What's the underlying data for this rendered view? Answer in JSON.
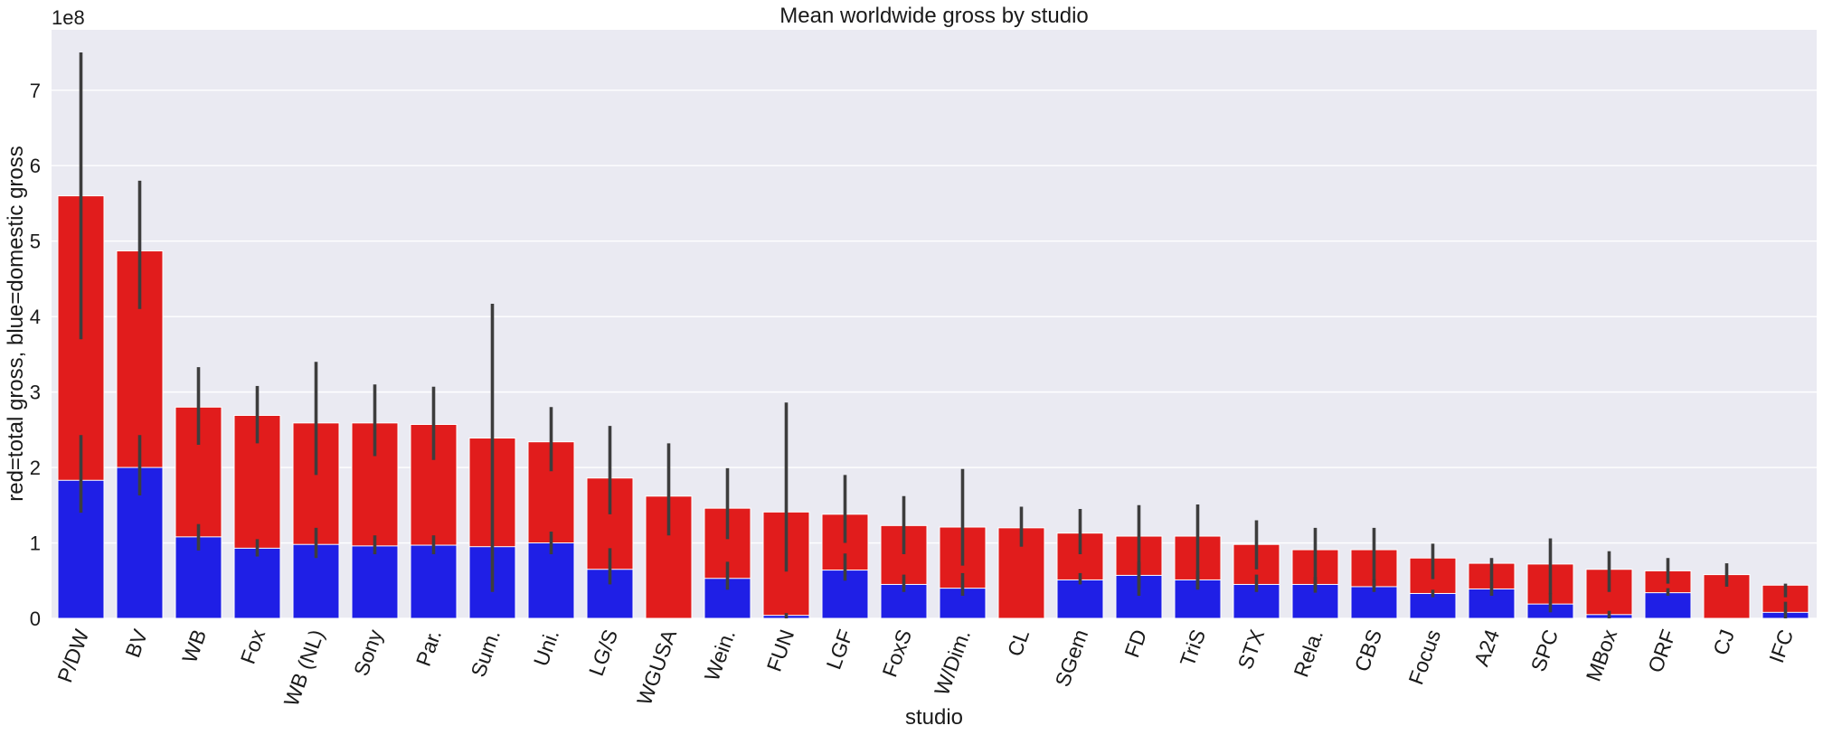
{
  "chart_data": {
    "type": "bar",
    "title": "Mean worldwide gross by studio",
    "xlabel": "studio",
    "ylabel": "red=total gross, blue=domestic gross",
    "y_offset_text": "1e8",
    "ylim": [
      0,
      7.8
    ],
    "yticks": [
      0,
      1,
      2,
      3,
      4,
      5,
      6,
      7
    ],
    "grid": true,
    "categories": [
      "P/DW",
      "BV",
      "WB",
      "Fox",
      "WB (NL)",
      "Sony",
      "Par.",
      "Sum.",
      "Uni.",
      "LG/S",
      "WGUSA",
      "Wein.",
      "FUN",
      "LGF",
      "FoxS",
      "W/Dim.",
      "CL",
      "SGem",
      "FD",
      "TriS",
      "STX",
      "Rela.",
      "CBS",
      "Focus",
      "A24",
      "SPC",
      "MBox",
      "ORF",
      "CJ",
      "IFC"
    ],
    "series": [
      {
        "name": "total gross",
        "color": "#e11c1c",
        "values": [
          5.6,
          4.87,
          2.8,
          2.69,
          2.59,
          2.59,
          2.57,
          2.39,
          2.34,
          1.86,
          1.62,
          1.46,
          1.41,
          1.38,
          1.23,
          1.21,
          1.2,
          1.13,
          1.09,
          1.09,
          0.98,
          0.91,
          0.91,
          0.8,
          0.73,
          0.72,
          0.65,
          0.63,
          0.58,
          0.44
        ],
        "error_low": [
          3.7,
          4.1,
          2.3,
          2.32,
          1.9,
          2.15,
          2.1,
          0.35,
          1.95,
          1.38,
          1.1,
          1.05,
          0.62,
          1.0,
          0.85,
          0.7,
          0.95,
          0.85,
          0.3,
          0.38,
          0.65,
          0.38,
          0.42,
          0.52,
          0.48,
          0.32,
          0.35,
          0.46,
          0.42,
          0.28
        ],
        "error_high": [
          7.5,
          5.8,
          3.33,
          3.08,
          3.4,
          3.1,
          3.07,
          4.17,
          2.8,
          2.55,
          2.32,
          1.99,
          2.86,
          1.9,
          1.62,
          1.98,
          1.48,
          1.45,
          1.5,
          1.51,
          1.3,
          1.2,
          1.2,
          0.99,
          0.8,
          1.06,
          0.89,
          0.8,
          0.73,
          0.46
        ]
      },
      {
        "name": "domestic gross",
        "color": "#1f1fe6",
        "values": [
          1.83,
          2.0,
          1.08,
          0.93,
          0.98,
          0.96,
          0.97,
          0.95,
          1.0,
          0.65,
          0.0,
          0.53,
          0.04,
          0.64,
          0.45,
          0.4,
          0.0,
          0.51,
          0.57,
          0.51,
          0.45,
          0.45,
          0.42,
          0.33,
          0.39,
          0.19,
          0.05,
          0.34,
          0.0,
          0.08
        ],
        "error_low": [
          1.4,
          1.63,
          0.9,
          0.82,
          0.8,
          0.85,
          0.85,
          null,
          0.85,
          0.45,
          null,
          0.38,
          0.0,
          0.5,
          0.35,
          0.3,
          null,
          0.45,
          0.4,
          0.4,
          0.35,
          0.34,
          0.35,
          0.28,
          0.3,
          0.08,
          0.0,
          0.3,
          null,
          0.0
        ],
        "error_high": [
          2.43,
          2.43,
          1.25,
          1.05,
          1.2,
          1.1,
          1.1,
          null,
          1.15,
          0.93,
          null,
          0.75,
          0.07,
          0.86,
          0.58,
          0.6,
          null,
          0.6,
          0.75,
          0.63,
          0.58,
          0.55,
          0.52,
          0.38,
          0.48,
          0.33,
          0.1,
          0.4,
          null,
          0.22
        ]
      }
    ]
  }
}
